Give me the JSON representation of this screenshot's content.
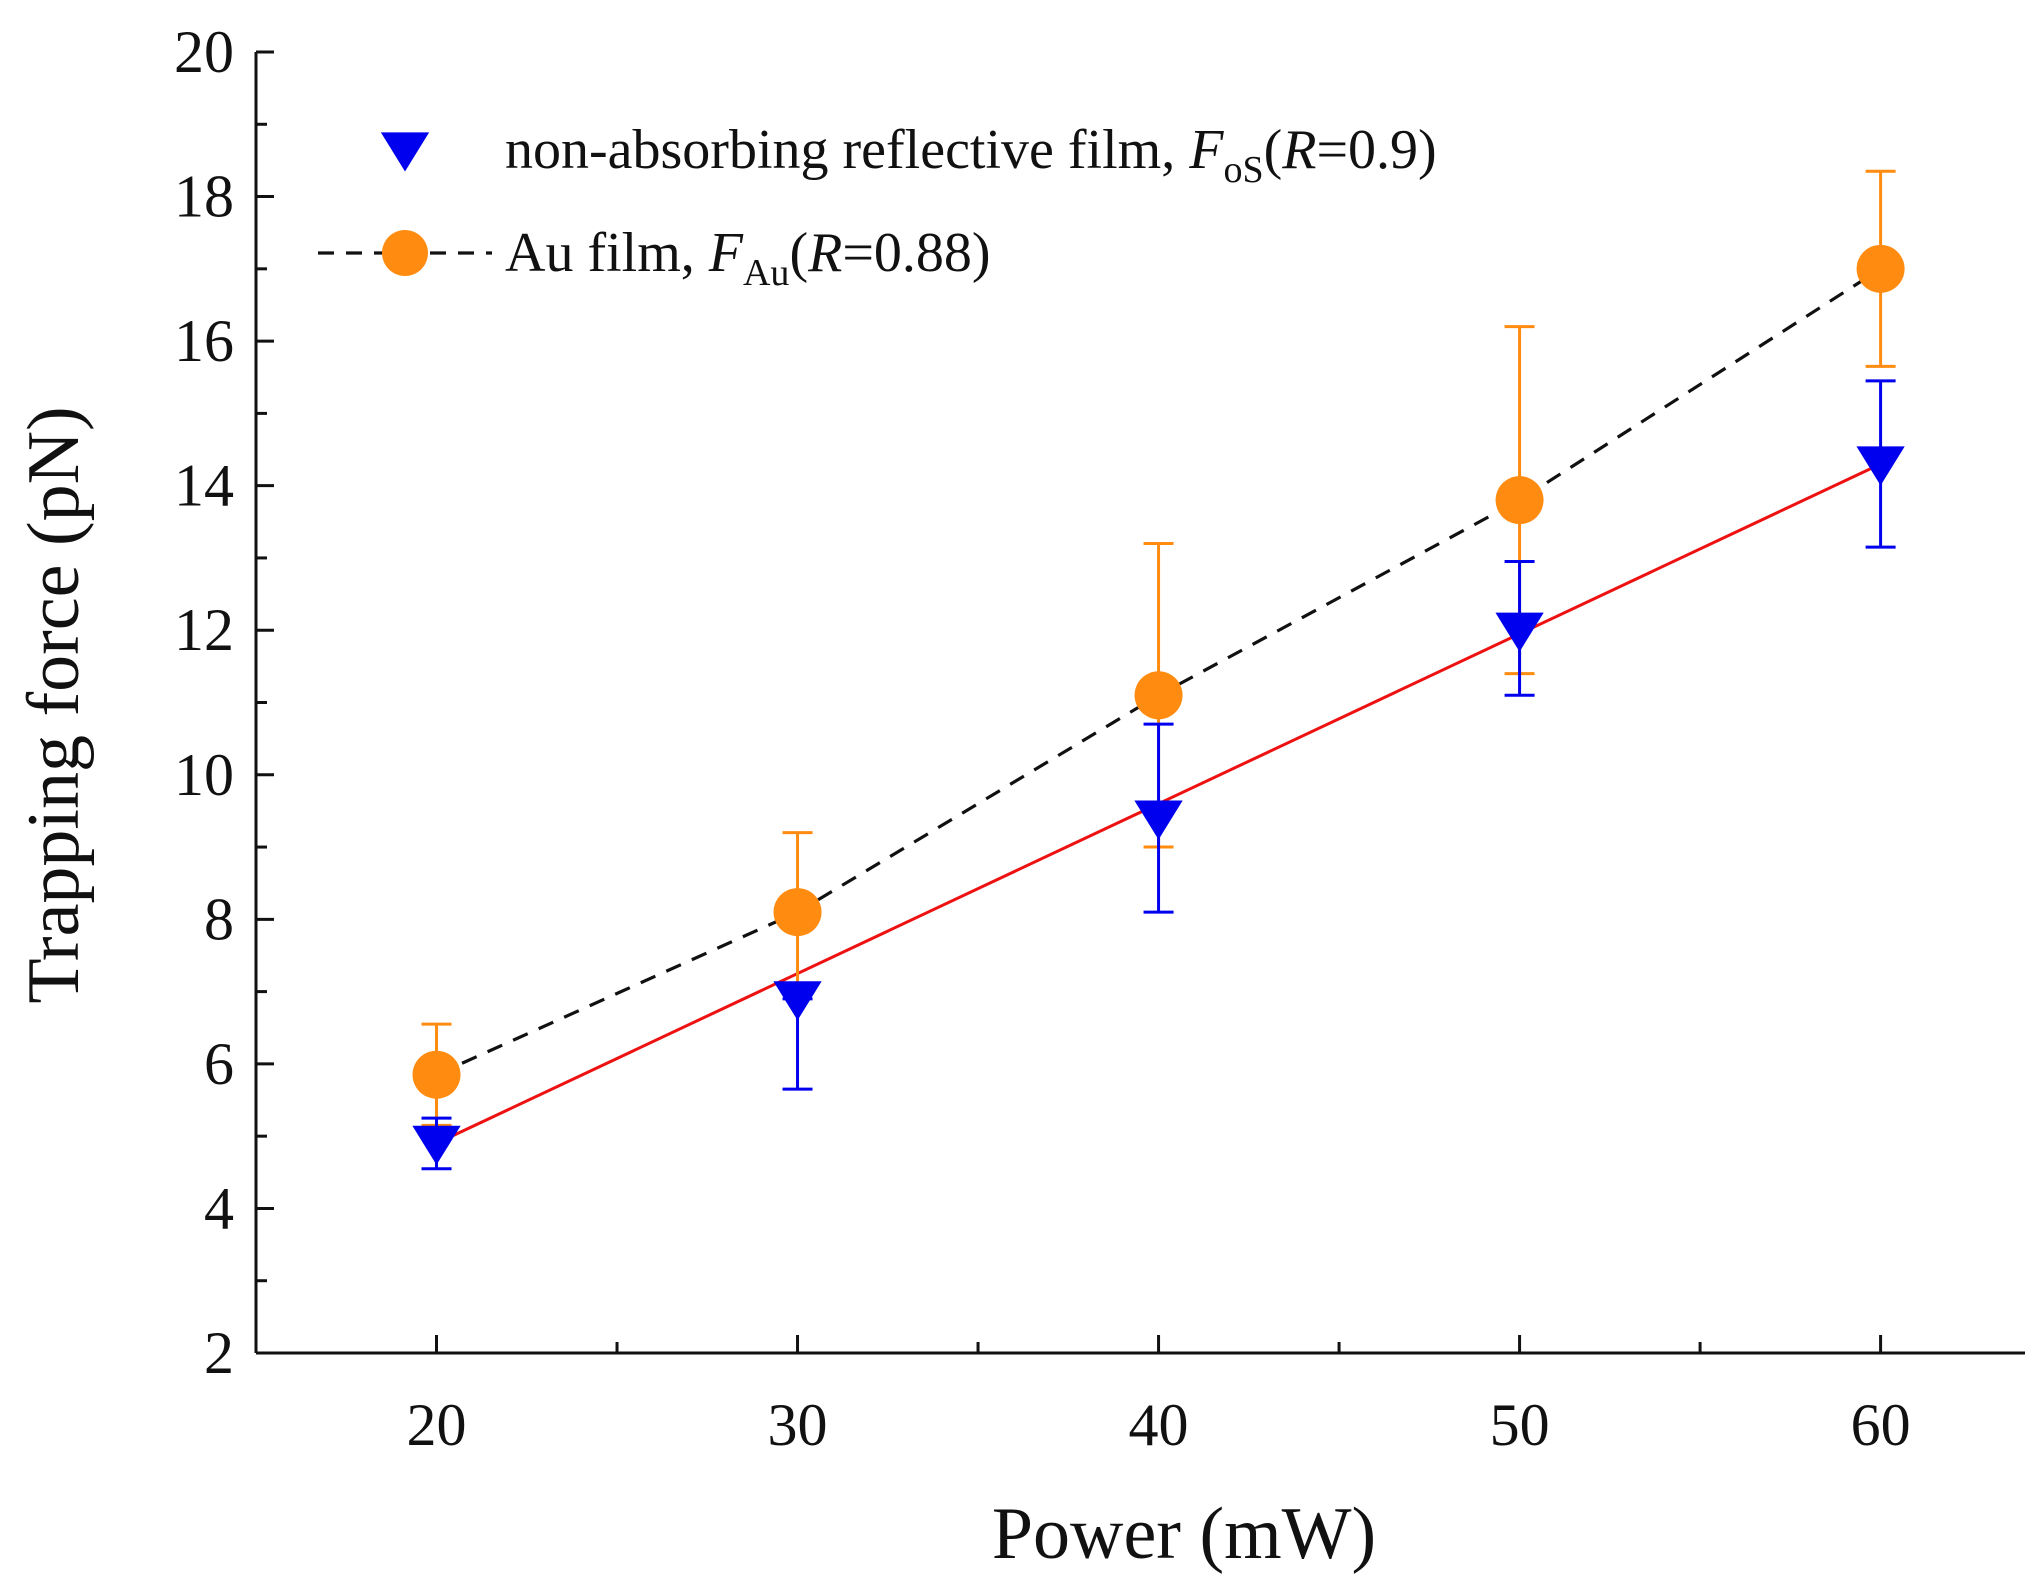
{
  "chart_data": {
    "type": "scatter",
    "xlabel": "Power (mW)",
    "ylabel": "Trapping force (pN)",
    "xlim": [
      15,
      64
    ],
    "ylim": [
      2,
      20
    ],
    "xticks": [
      20,
      30,
      40,
      50,
      60
    ],
    "yticks": [
      2,
      4,
      6,
      8,
      10,
      12,
      14,
      16,
      18,
      20
    ],
    "grid": false,
    "legend_position": "top-left",
    "series": [
      {
        "id": "non-absorbing",
        "name": "non-absorbing reflective film,",
        "symbol": "F",
        "subscript": "oS",
        "condition": "(R=0.9)",
        "marker": "down-triangle",
        "color": "#0000ee",
        "x": [
          20,
          30,
          40,
          50,
          60
        ],
        "y": [
          4.9,
          6.9,
          9.4,
          12.0,
          14.3
        ],
        "err_low": [
          0.35,
          1.25,
          1.3,
          0.9,
          1.15
        ],
        "err_high": [
          0.35,
          0.0,
          1.3,
          0.95,
          1.15
        ],
        "fit": {
          "style": "solid",
          "color": "#ee1111",
          "x": [
            20,
            60
          ],
          "y": [
            4.9,
            14.3
          ]
        }
      },
      {
        "id": "au-film",
        "name": "Au film,",
        "symbol": "F",
        "subscript": "Au",
        "condition": "(R=0.88)",
        "marker": "circle",
        "color": "#ff8c10",
        "x": [
          20,
          30,
          40,
          50,
          60
        ],
        "y": [
          5.85,
          8.1,
          11.1,
          13.8,
          17.0
        ],
        "err_low": [
          0.7,
          1.05,
          2.1,
          2.4,
          1.35
        ],
        "err_high": [
          0.7,
          1.1,
          2.1,
          2.4,
          1.35
        ],
        "fit": {
          "style": "dashed",
          "color": "#111111",
          "x": [
            20,
            30,
            40,
            50,
            60
          ],
          "y": [
            5.85,
            8.1,
            11.1,
            13.8,
            17.0
          ]
        }
      }
    ]
  }
}
